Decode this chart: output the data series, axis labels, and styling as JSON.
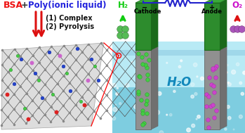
{
  "bg_color": "#ffffff",
  "bsa_text": "BSA",
  "plus_text": "+",
  "poly_text": "Poly(ionic liquid)",
  "step1_text": "(1) Complex",
  "step2_text": "(2) Pyrolysis",
  "h2_text": "H₂",
  "o2_text": "O₂",
  "h2o_text": "H₂O",
  "cathode_text": "Cathode",
  "anode_text": "Anode",
  "cathode_sign": "−",
  "anode_sign": "+",
  "bsa_color": "#ee1111",
  "poly_color": "#2222dd",
  "arrow_color": "#dd1111",
  "h2_color": "#11cc11",
  "o2_color": "#cc11cc",
  "h2o_color": "#1188bb",
  "electrode_green_face": "#2d8c2d",
  "electrode_green_side": "#1a6a1a",
  "electrode_green_top": "#3aaa3a",
  "water_top_color": "#b8eaf5",
  "water_bot_color": "#7ecde0",
  "water_surf_color": "#9dd8e8",
  "circuit_color": "#2222cc",
  "porous_gray": "#909090",
  "porous_dark": "#666666",
  "green_dot": "#44cc44",
  "magenta_dot": "#cc44cc",
  "graphene_bg": "#e0e0e0",
  "graphene_bond": "#555555",
  "graphene_atom": "#888888",
  "n_dot": "#2244cc",
  "s_dot": "#44cc44",
  "red_dot": "#dd2222",
  "pink_dot": "#cc66cc"
}
